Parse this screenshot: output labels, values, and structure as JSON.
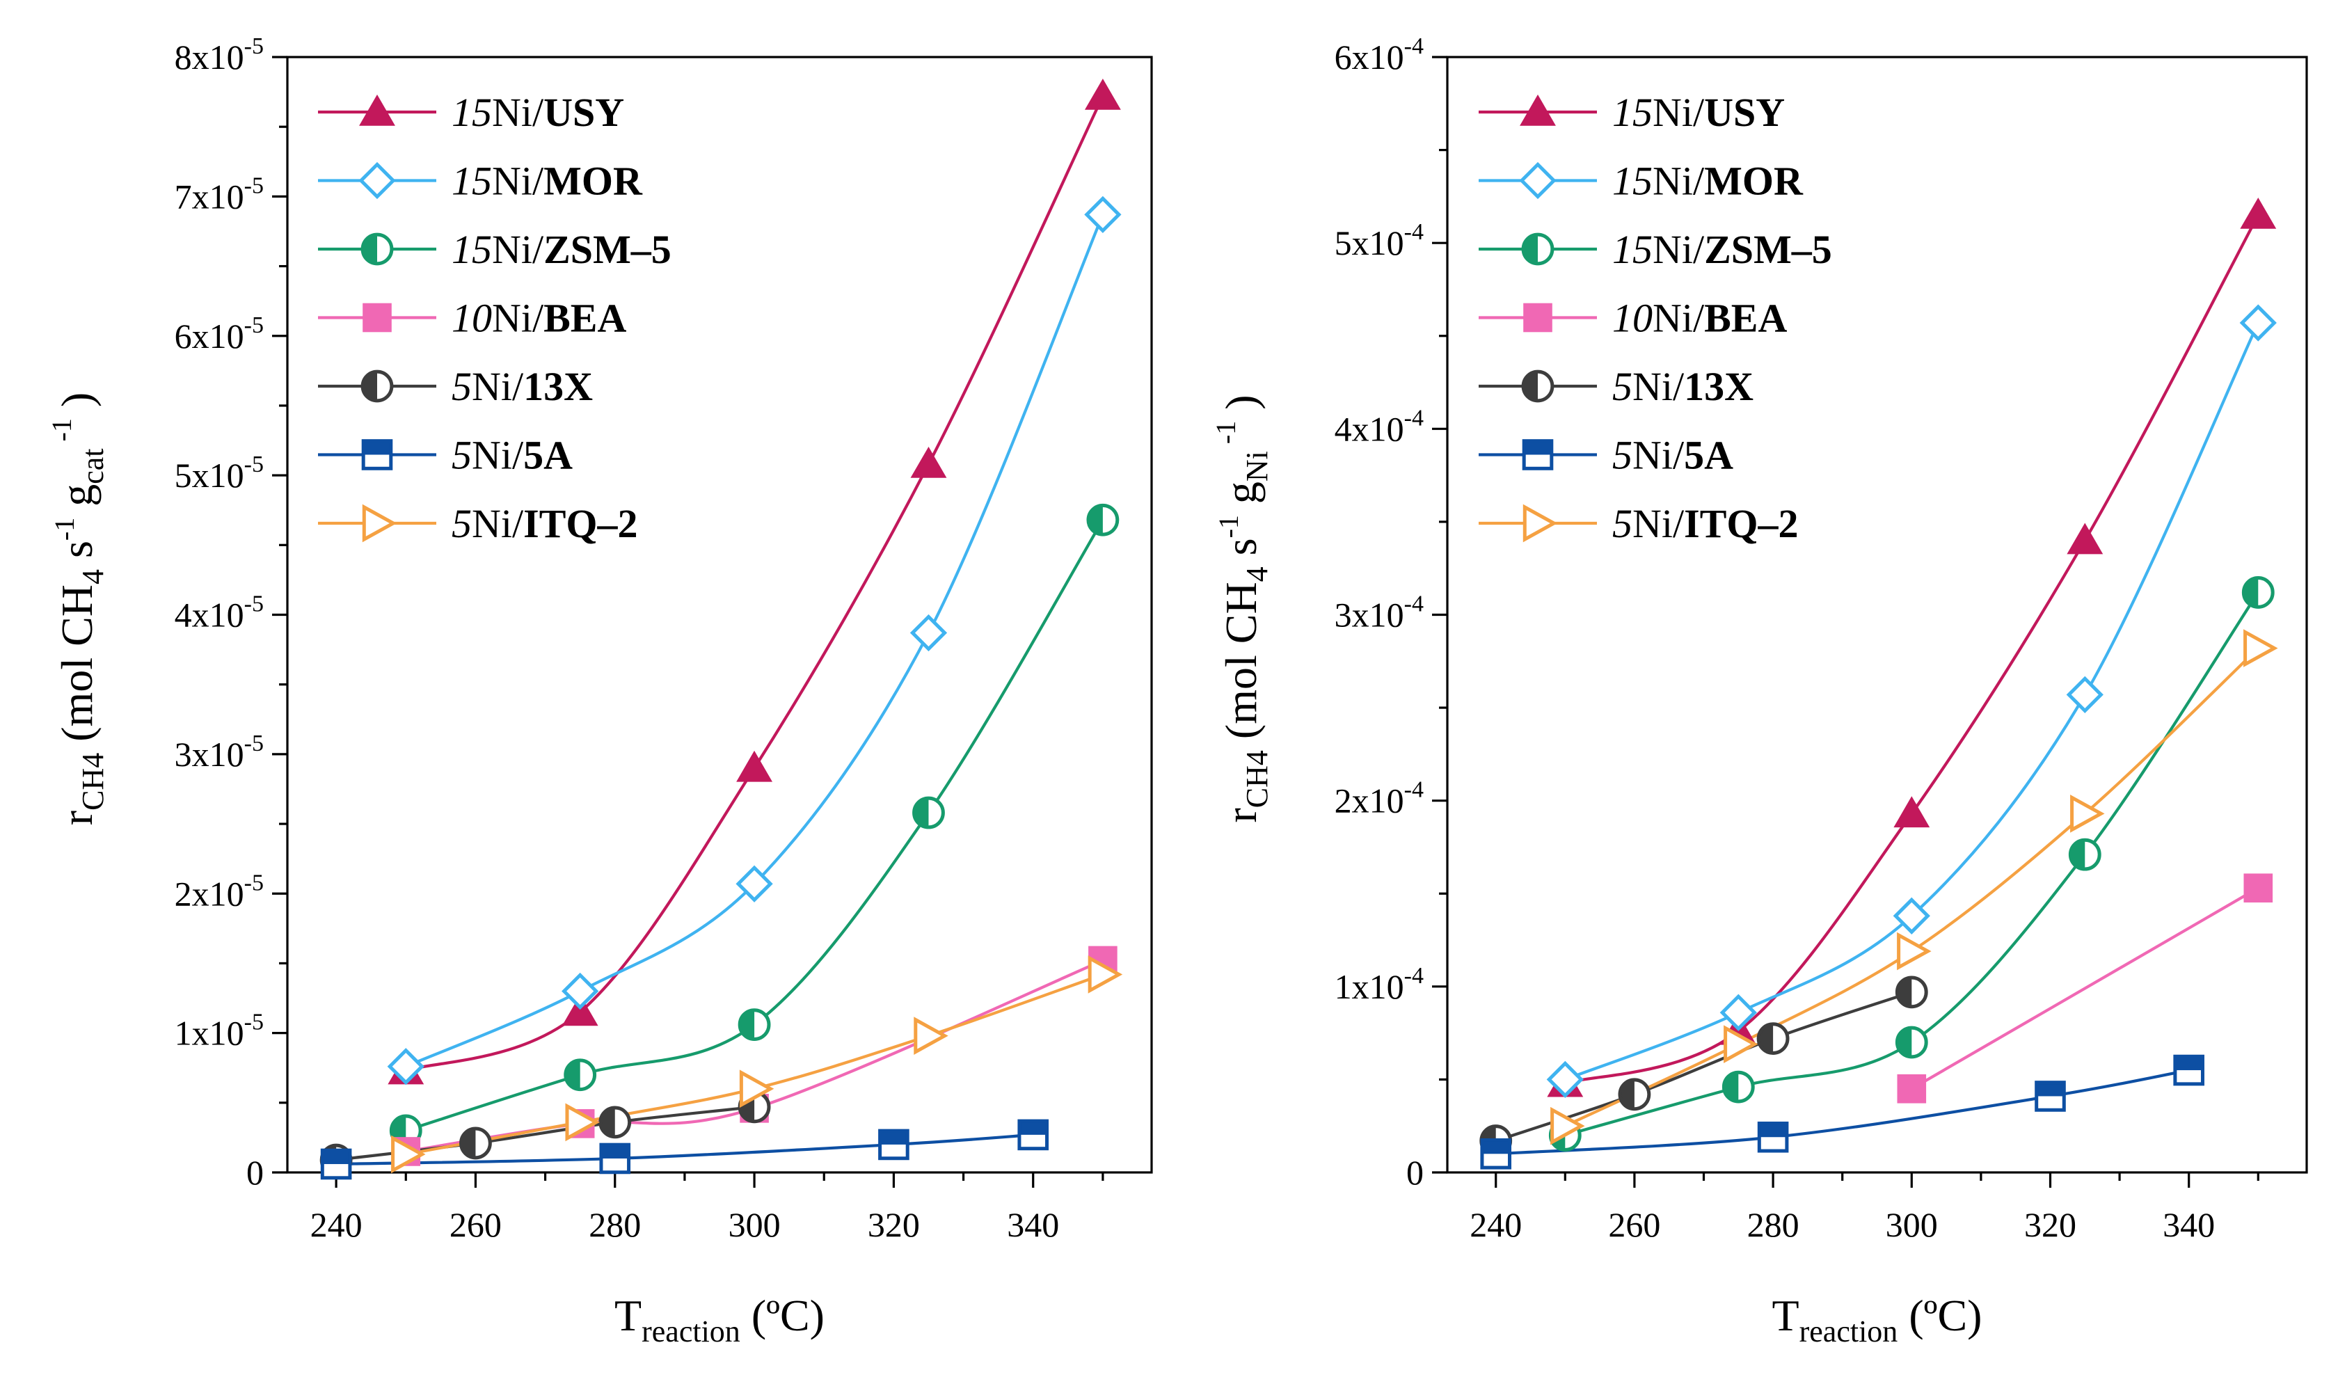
{
  "chart_data": [
    {
      "type": "line",
      "panel": "left",
      "ylabel_base": "r",
      "ylabel_sub": "CH4",
      "ylabel_pre": "(mol CH",
      "ylabel_sub2": "4",
      "ylabel_mid": " s",
      "ylabel_sup1": "-1",
      "ylabel_g": " g",
      "ylabel_sub3": "cat",
      "ylabel_sup2": "-1",
      "ylabel_close": ")",
      "xlabel_base": "T",
      "xlabel_sub": "reaction",
      "xlabel_unit": " (ºC)",
      "xlim": [
        233,
        357
      ],
      "ylim": [
        0,
        8e-05
      ],
      "xticks": [
        240,
        260,
        280,
        300,
        320,
        340
      ],
      "ytick_values": [
        0,
        1e-05,
        2e-05,
        3e-05,
        4e-05,
        5e-05,
        6e-05,
        7e-05,
        8e-05
      ],
      "ytick_mantissa": [
        "0",
        "1x10",
        "2x10",
        "3x10",
        "4x10",
        "5x10",
        "6x10",
        "7x10",
        "8x10"
      ],
      "ytick_exponent": [
        "",
        "-5",
        "-5",
        "-5",
        "-5",
        "-5",
        "-5",
        "-5",
        "-5"
      ],
      "legend_position": "top-left",
      "series": [
        {
          "name": "15Ni/USY",
          "prefix": "15",
          "metal": "Ni/",
          "support": "USY",
          "color": "#c2185b",
          "marker": "triangle",
          "x": [
            250,
            275,
            300,
            325,
            350
          ],
          "values": [
            7.3e-06,
            1.15e-05,
            2.9e-05,
            5.08e-05,
            7.72e-05
          ]
        },
        {
          "name": "15Ni/MOR",
          "prefix": "15",
          "metal": "Ni/",
          "support": "MOR",
          "color": "#3fb3f0",
          "marker": "diamond",
          "x": [
            250,
            275,
            300,
            325,
            350
          ],
          "values": [
            7.6e-06,
            1.3e-05,
            2.07e-05,
            3.87e-05,
            6.87e-05
          ]
        },
        {
          "name": "15Ni/ZSM–5",
          "prefix": "15",
          "metal": "Ni/",
          "support": "ZSM–5",
          "color": "#169b6c",
          "marker": "half-circle",
          "x": [
            250,
            275,
            300,
            325,
            350
          ],
          "values": [
            3e-06,
            7e-06,
            1.06e-05,
            2.58e-05,
            4.68e-05
          ]
        },
        {
          "name": "10Ni/BEA",
          "prefix": "10",
          "metal": "Ni/",
          "support": "BEA",
          "color": "#f068b4",
          "marker": "square",
          "x": [
            250,
            275,
            300,
            350
          ],
          "values": [
            1.5e-06,
            3.5e-06,
            4.6e-06,
            1.52e-05
          ]
        },
        {
          "name": "5Ni/13X",
          "prefix": "5",
          "metal": "Ni/",
          "support": "13X",
          "color": "#3d3d3d",
          "marker": "half-circle",
          "x": [
            240,
            260,
            280,
            300
          ],
          "values": [
            9e-07,
            2.1e-06,
            3.6e-06,
            4.7e-06
          ]
        },
        {
          "name": "5Ni/5A",
          "prefix": "5",
          "metal": "Ni/",
          "support": "5A",
          "color": "#0d4fa3",
          "marker": "half-square",
          "x": [
            240,
            280,
            320,
            340
          ],
          "values": [
            6e-07,
            1e-06,
            2e-06,
            2.7e-06
          ]
        },
        {
          "name": "5Ni/ITQ–2",
          "prefix": "5",
          "metal": "Ni/",
          "support": "ITQ–2",
          "color": "#f5a142",
          "marker": "triangle-right",
          "x": [
            250,
            275,
            300,
            325,
            350
          ],
          "values": [
            1.3e-06,
            3.6e-06,
            6e-06,
            9.8e-06,
            1.42e-05
          ]
        }
      ]
    },
    {
      "type": "line",
      "panel": "right",
      "ylabel_base": "r",
      "ylabel_sub": "CH4",
      "ylabel_pre": "(mol CH",
      "ylabel_sub2": "4",
      "ylabel_mid": " s",
      "ylabel_sup1": "-1",
      "ylabel_g": " g",
      "ylabel_sub3": "Ni",
      "ylabel_sup2": "-1",
      "ylabel_close": ")",
      "xlabel_base": "T",
      "xlabel_sub": "reaction",
      "xlabel_unit": " (ºC)",
      "xlim": [
        233,
        357
      ],
      "ylim": [
        0,
        0.0006
      ],
      "xticks": [
        240,
        260,
        280,
        300,
        320,
        340
      ],
      "ytick_values": [
        0,
        0.0001,
        0.0002,
        0.0003,
        0.0004,
        0.0005,
        0.0006
      ],
      "ytick_mantissa": [
        "0",
        "1x10",
        "2x10",
        "3x10",
        "4x10",
        "5x10",
        "6x10"
      ],
      "ytick_exponent": [
        "",
        "-4",
        "-4",
        "-4",
        "-4",
        "-4",
        "-4"
      ],
      "legend_position": "top-left",
      "series": [
        {
          "name": "15Ni/USY",
          "prefix": "15",
          "metal": "Ni/",
          "support": "USY",
          "color": "#c2185b",
          "marker": "triangle",
          "x": [
            250,
            275,
            300,
            325,
            350
          ],
          "values": [
            4.8e-05,
            7.6e-05,
            0.000193,
            0.00034,
            0.000515
          ]
        },
        {
          "name": "15Ni/MOR",
          "prefix": "15",
          "metal": "Ni/",
          "support": "MOR",
          "color": "#3fb3f0",
          "marker": "diamond",
          "x": [
            250,
            275,
            300,
            325,
            350
          ],
          "values": [
            5e-05,
            8.6e-05,
            0.000138,
            0.000257,
            0.000457
          ]
        },
        {
          "name": "15Ni/ZSM–5",
          "prefix": "15",
          "metal": "Ni/",
          "support": "ZSM–5",
          "color": "#169b6c",
          "marker": "half-circle",
          "x": [
            250,
            275,
            300,
            325,
            350
          ],
          "values": [
            2e-05,
            4.6e-05,
            7e-05,
            0.000171,
            0.000312
          ]
        },
        {
          "name": "10Ni/BEA",
          "prefix": "10",
          "metal": "Ni/",
          "support": "BEA",
          "color": "#f068b4",
          "marker": "square",
          "x": [
            300,
            350
          ],
          "values": [
            4.5e-05,
            0.000153
          ]
        },
        {
          "name": "5Ni/13X",
          "prefix": "5",
          "metal": "Ni/",
          "support": "13X",
          "color": "#3d3d3d",
          "marker": "half-circle",
          "x": [
            240,
            260,
            280,
            300
          ],
          "values": [
            1.7e-05,
            4.2e-05,
            7.2e-05,
            9.7e-05
          ]
        },
        {
          "name": "5Ni/5A",
          "prefix": "5",
          "metal": "Ni/",
          "support": "5A",
          "color": "#0d4fa3",
          "marker": "half-square",
          "x": [
            240,
            280,
            320,
            340
          ],
          "values": [
            1e-05,
            1.9e-05,
            4.1e-05,
            5.5e-05
          ]
        },
        {
          "name": "5Ni/ITQ–2",
          "prefix": "5",
          "metal": "Ni/",
          "support": "ITQ–2",
          "color": "#f5a142",
          "marker": "triangle-right",
          "x": [
            250,
            275,
            300,
            325,
            350
          ],
          "values": [
            2.5e-05,
            6.9e-05,
            0.000119,
            0.000193,
            0.000282
          ]
        }
      ]
    }
  ]
}
